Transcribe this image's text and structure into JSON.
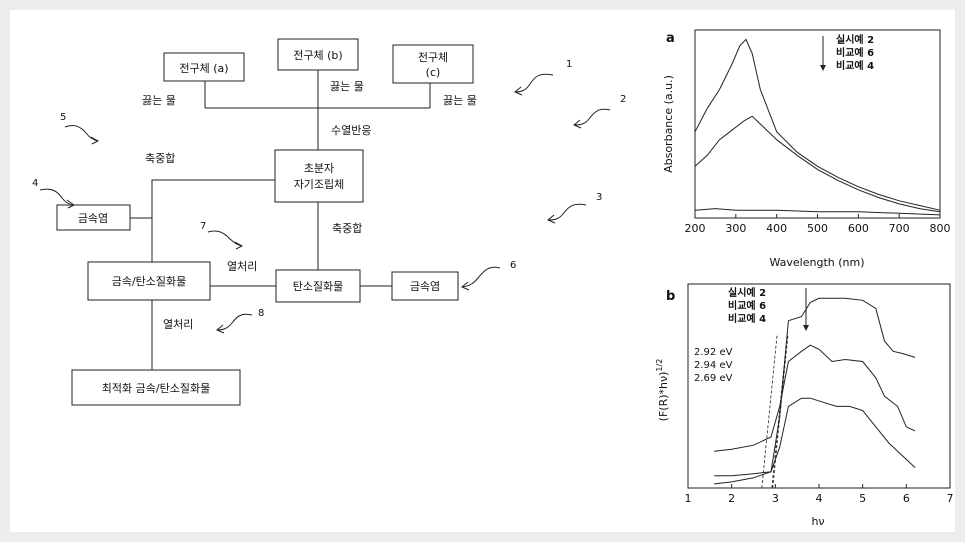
{
  "flowchart": {
    "boxes": {
      "precursor_a": "전구체 (a)",
      "precursor_b": "전구체 (b)",
      "precursor_c_line1": "전구체",
      "precursor_c_line2": "(c)",
      "assembly_line1": "초분자",
      "assembly_line2": "자기조립체",
      "metal_salt_left": "금속염",
      "metal_salt_right": "금속염",
      "carbon_nitride": "탄소질화물",
      "metal_carbon_nitride": "금속/탄소질화물",
      "optimized": "최적화 금속/탄소질화물"
    },
    "labels": {
      "boiling_water_a": "끓는 물",
      "boiling_water_b": "끓는 물",
      "boiling_water_c": "끓는 물",
      "hydrothermal": "수열반응",
      "polycondensation_left": "축중합",
      "polycondensation_right": "축중합",
      "heat_treatment_1": "열처리",
      "heat_treatment_2": "열처리"
    },
    "callouts": [
      "1",
      "2",
      "3",
      "4",
      "5",
      "6",
      "7",
      "8"
    ]
  },
  "chart_data": [
    {
      "type": "line",
      "panel_label": "a",
      "xlabel": "Wavelength (nm)",
      "ylabel": "Absorbance (a.u.)",
      "xlim": [
        200,
        800
      ],
      "x_ticks": [
        "200",
        "300",
        "400",
        "500",
        "600",
        "700",
        "800"
      ],
      "legend": [
        "실시예 2",
        "비교예 6",
        "비교예 4"
      ],
      "legend_placement": "top-right",
      "series": [
        {
          "name": "실시예 2",
          "x": [
            200,
            230,
            260,
            290,
            310,
            325,
            340,
            360,
            400,
            450,
            500,
            550,
            600,
            650,
            700,
            750,
            800
          ],
          "y": [
            0.55,
            0.7,
            0.82,
            0.98,
            1.1,
            1.14,
            1.05,
            0.82,
            0.55,
            0.42,
            0.33,
            0.26,
            0.2,
            0.15,
            0.11,
            0.08,
            0.05
          ]
        },
        {
          "name": "비교예 6",
          "x": [
            200,
            230,
            260,
            290,
            320,
            340,
            360,
            400,
            450,
            500,
            550,
            600,
            650,
            700,
            750,
            800
          ],
          "y": [
            0.33,
            0.4,
            0.5,
            0.56,
            0.62,
            0.65,
            0.6,
            0.5,
            0.4,
            0.31,
            0.24,
            0.18,
            0.13,
            0.09,
            0.06,
            0.04
          ]
        },
        {
          "name": "비교예 4",
          "x": [
            200,
            250,
            300,
            350,
            400,
            500,
            600,
            700,
            800
          ],
          "y": [
            0.05,
            0.06,
            0.05,
            0.05,
            0.05,
            0.04,
            0.04,
            0.03,
            0.02
          ]
        }
      ]
    },
    {
      "type": "line",
      "panel_label": "b",
      "xlabel": "hν",
      "ylabel": "(F(R)*hν)^1/2",
      "ylabel_main": "(F(R)*hν)",
      "ylabel_sup": "1/2",
      "xlim": [
        1,
        7
      ],
      "x_ticks": [
        "1",
        "2",
        "3",
        "4",
        "5",
        "6",
        "7"
      ],
      "legend": [
        "실시예 2",
        "비교예 6",
        "비교예 4"
      ],
      "legend_placement": "top-left",
      "annotations": [
        "2.92 eV",
        "2.94 eV",
        "2.69 eV"
      ],
      "series": [
        {
          "name": "실시예 2",
          "x": [
            1.6,
            2.0,
            2.5,
            2.9,
            3.1,
            3.3,
            3.6,
            3.8,
            4.0,
            4.3,
            4.6,
            5.0,
            5.3,
            5.5,
            5.7,
            5.9,
            6.2
          ],
          "y": [
            0.06,
            0.06,
            0.07,
            0.08,
            0.35,
            0.82,
            0.84,
            0.91,
            0.93,
            0.93,
            0.93,
            0.92,
            0.88,
            0.72,
            0.67,
            0.66,
            0.64
          ]
        },
        {
          "name": "비교예 6",
          "x": [
            1.6,
            2.0,
            2.5,
            2.9,
            3.1,
            3.3,
            3.6,
            3.8,
            4.0,
            4.3,
            4.6,
            5.0,
            5.3,
            5.5,
            5.8,
            6.0,
            6.2
          ],
          "y": [
            0.18,
            0.19,
            0.21,
            0.25,
            0.4,
            0.62,
            0.67,
            0.7,
            0.68,
            0.62,
            0.63,
            0.62,
            0.54,
            0.45,
            0.4,
            0.3,
            0.28
          ]
        },
        {
          "name": "비교예 4",
          "x": [
            1.6,
            2.0,
            2.5,
            2.9,
            3.1,
            3.3,
            3.6,
            3.8,
            4.1,
            4.4,
            4.7,
            5.0,
            5.3,
            5.6,
            5.9,
            6.2
          ],
          "y": [
            0.02,
            0.03,
            0.05,
            0.08,
            0.2,
            0.4,
            0.44,
            0.44,
            0.42,
            0.4,
            0.4,
            0.38,
            0.3,
            0.22,
            0.16,
            0.1
          ]
        }
      ]
    }
  ]
}
